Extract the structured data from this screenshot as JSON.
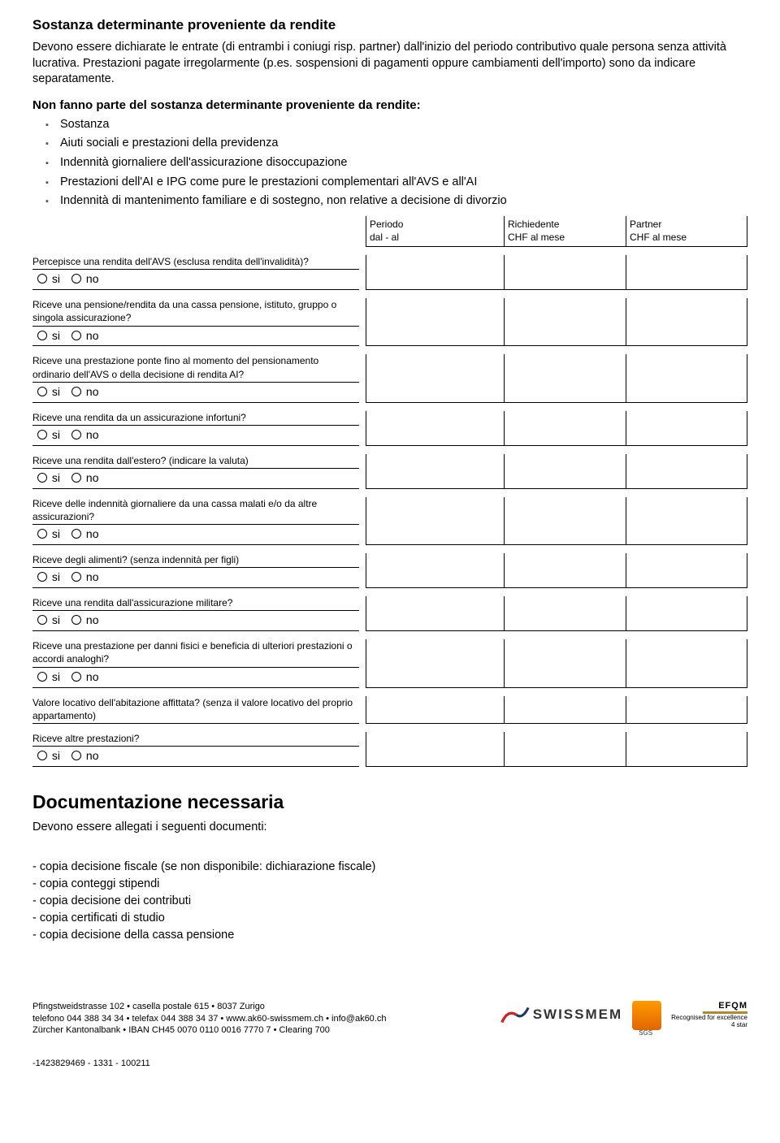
{
  "section": {
    "title": "Sostanza determinante proveniente da rendite",
    "intro": "Devono essere dichiarate le entrate (di entrambi i coniugi risp. partner) dall'inizio del periodo contributivo quale persona senza attività lucrativa. Prestazioni pagate irregolarmente (p.es. sospensioni di pagamenti oppure cambiamenti dell'importo) sono da indicare separatamente.",
    "subhead": "Non fanno parte del sostanza determinante proveniente da rendite:",
    "bullets": [
      "Sostanza",
      "Aiuti sociali e prestazioni della previdenza",
      "Indennità giornaliere dell'assicurazione disoccupazione",
      "Prestazioni dell'AI e IPG come pure le prestazioni complementari all'AVS e all'AI",
      "Indennità di mantenimento familiare e di sostegno, non relative a decisione di divorzio"
    ]
  },
  "headers": {
    "periodo_l1": "Periodo",
    "periodo_l2": "dal - al",
    "rich_l1": "Richiedente",
    "rich_l2": "CHF al mese",
    "part_l1": "Partner",
    "part_l2": "CHF al mese"
  },
  "radio": {
    "si": "si",
    "no": "no"
  },
  "questions": [
    {
      "text": "Percepisce una rendita dell'AVS  (esclusa rendita dell'invalidità)?",
      "radios": true
    },
    {
      "text": "Riceve una pensione/rendita da una cassa pensione, istituto, gruppo o singola assicurazione?",
      "radios": true
    },
    {
      "text": "Riceve una prestazione ponte fino al momento del pensionamento ordinario dell'AVS o della decisione di rendita AI?",
      "radios": true
    },
    {
      "text": "Riceve una rendita da un assicurazione infortuni?",
      "radios": true
    },
    {
      "text": "Riceve una rendita dall'estero? (indicare la valuta)",
      "radios": true
    },
    {
      "text": "Riceve delle indennità giornaliere da una cassa malati e/o da altre assicurazioni?",
      "radios": true
    },
    {
      "text": "Riceve degli alimenti? (senza indennità per figli)",
      "radios": true
    },
    {
      "text": "Riceve una rendita dall'assicurazione militare?",
      "radios": true
    },
    {
      "text": "Riceve una prestazione per danni fisici e beneficia di ulteriori prestazioni o accordi analoghi?",
      "radios": true
    },
    {
      "text": "Valore locativo dell'abitazione affittata? (senza il valore locativo del proprio appartamento)",
      "radios": false
    },
    {
      "text": "Riceve altre prestazioni?",
      "radios": true
    }
  ],
  "docs": {
    "title": "Documentazione necessaria",
    "sub": "Devono essere allegati i seguenti documenti:",
    "items": [
      "- copia decisione fiscale (se non disponibile: dichiarazione fiscale)",
      "- copia conteggi stipendi",
      "- copia decisione dei contributi",
      "- copia certificati di studio",
      "- copia decisione della cassa pensione"
    ]
  },
  "footer": {
    "line1": "Pfingstweidstrasse 102 • casella postale 615 • 8037 Zurigo",
    "line2": "telefono 044 388 34 34 • telefax 044 388 34 37 • www.ak60-swissmem.ch • info@ak60.ch",
    "line3": "Zürcher Kantonalbank • IBAN CH45 0070 0110 0016 7770 7 • Clearing 700",
    "logo_name": "SWISSMEM",
    "efqm_l1": "EFQM",
    "efqm_l2": "Recognised for excellence",
    "efqm_l3": "4 star",
    "page_id": "-1423829469 - 1331 - 100211"
  }
}
